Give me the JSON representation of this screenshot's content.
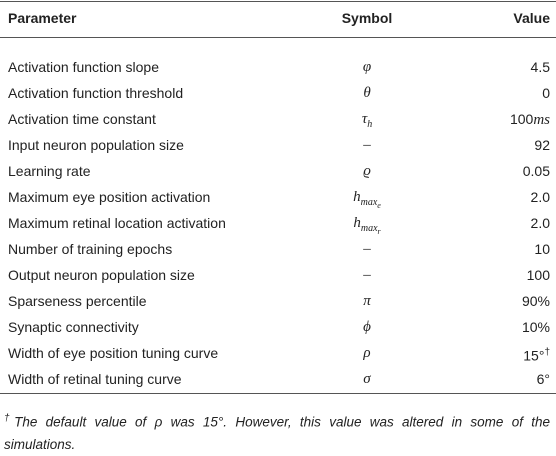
{
  "table": {
    "headers": [
      "Parameter",
      "Symbol",
      "Value"
    ],
    "rows": [
      {
        "parameter": "Activation function slope",
        "symbol": {
          "base": "φ"
        },
        "value": "4.5"
      },
      {
        "parameter": "Activation function threshold",
        "symbol": {
          "base": "θ"
        },
        "value": "0"
      },
      {
        "parameter": "Activation time constant",
        "symbol": {
          "base": "τ",
          "sub": "h"
        },
        "value": "100",
        "unit": "ms"
      },
      {
        "parameter": "Input neuron population size",
        "symbol": {
          "base": "–"
        },
        "value": "92"
      },
      {
        "parameter": "Learning rate",
        "symbol": {
          "base": "ϱ"
        },
        "value": "0.05"
      },
      {
        "parameter": "Maximum eye position activation",
        "symbol": {
          "base": "h",
          "sub": "max",
          "subsub": "e"
        },
        "value": "2.0"
      },
      {
        "parameter": "Maximum retinal location activation",
        "symbol": {
          "base": "h",
          "sub": "max",
          "subsub": "r"
        },
        "value": "2.0"
      },
      {
        "parameter": "Number of training epochs",
        "symbol": {
          "base": "–"
        },
        "value": "10"
      },
      {
        "parameter": "Output neuron population size",
        "symbol": {
          "base": "–"
        },
        "value": "100"
      },
      {
        "parameter": "Sparseness percentile",
        "symbol": {
          "base": "π"
        },
        "value": "90%"
      },
      {
        "parameter": "Synaptic connectivity",
        "symbol": {
          "base": "ϕ"
        },
        "value": "10%"
      },
      {
        "parameter": "Width of eye position tuning curve",
        "symbol": {
          "base": "ρ"
        },
        "value": "15°",
        "mark": "†"
      },
      {
        "parameter": "Width of retinal tuning curve",
        "symbol": {
          "base": "σ"
        },
        "value": "6°"
      }
    ],
    "footnote": {
      "mark": "†",
      "text": "The default value of ρ was 15°. However, this value was altered in some of the simulations."
    }
  }
}
